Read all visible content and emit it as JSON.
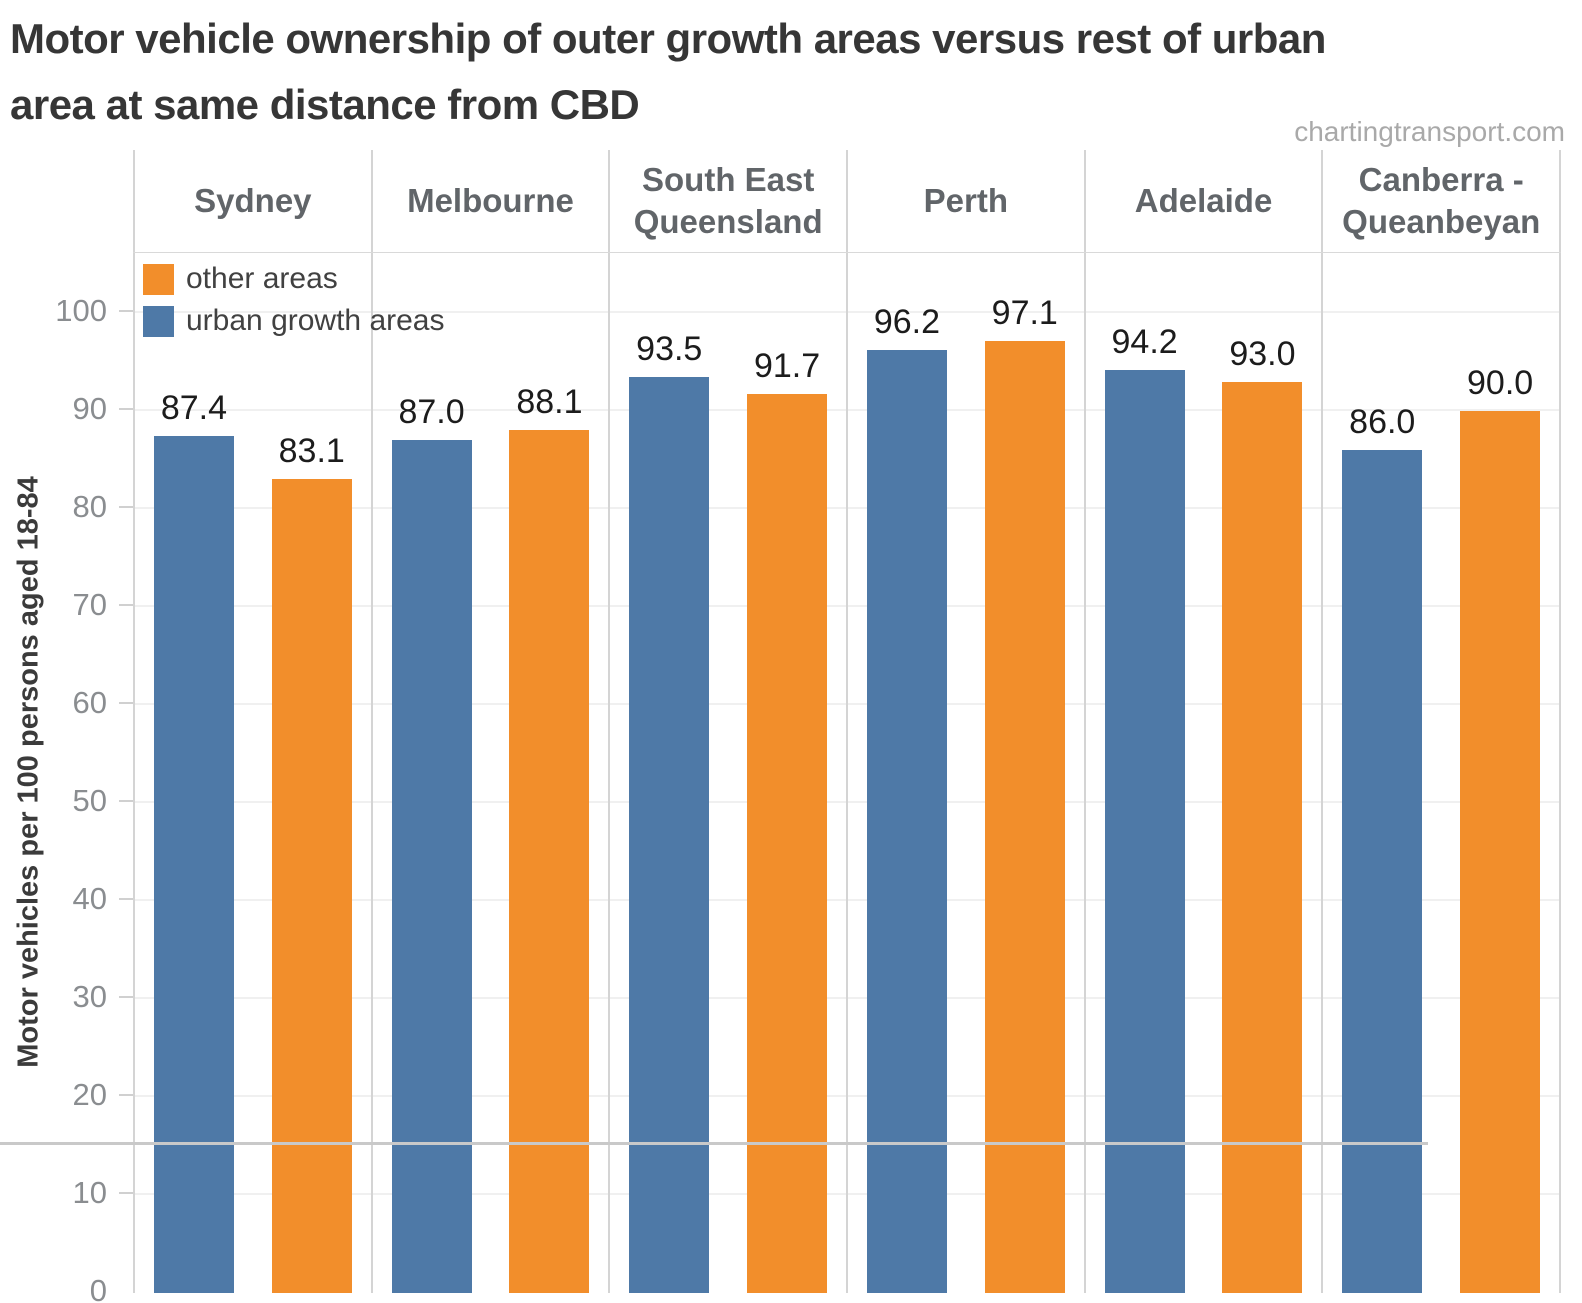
{
  "title_line1": "Motor vehicle ownership of outer growth areas versus rest of urban",
  "title_line2": "area at same distance from CBD",
  "watermark": "chartingtransport.com",
  "colors": {
    "urban_growth_blue": "#4e79a7",
    "other_areas_orange": "#f28e2b",
    "gridline": "#f0f0f0",
    "pane_divider": "#d4d4d4",
    "axis_text": "#8a8d90",
    "header_text": "#616569"
  },
  "legend": [
    {
      "label": "other areas",
      "color": "#f28e2b"
    },
    {
      "label": "urban growth areas",
      "color": "#4e79a7"
    }
  ],
  "chart_data": {
    "type": "bar",
    "title": "Motor vehicle ownership of outer growth areas versus rest of urban area at same distance from CBD",
    "xlabel": "",
    "ylabel": "Motor vehicles per 100 persons aged 18-84",
    "ylim": [
      0,
      106
    ],
    "yticks": [
      0,
      10,
      20,
      30,
      40,
      50,
      60,
      70,
      80,
      90,
      100
    ],
    "grid": true,
    "legend_position": "top-left inside plot",
    "categories": [
      "Sydney",
      "Melbourne",
      "South East Queensland",
      "Perth",
      "Adelaide",
      "Canberra - Queanbeyan"
    ],
    "category_lines": [
      [
        "Sydney"
      ],
      [
        "Melbourne"
      ],
      [
        "South East",
        "Queensland"
      ],
      [
        "Perth"
      ],
      [
        "Adelaide"
      ],
      [
        "Canberra -",
        "Queanbeyan"
      ]
    ],
    "series": [
      {
        "name": "urban growth areas",
        "color": "#4e79a7",
        "values": [
          87.4,
          87.0,
          93.5,
          96.2,
          94.2,
          86.0
        ],
        "labels": [
          "87.4",
          "87.0",
          "93.5",
          "96.2",
          "94.2",
          "86.0"
        ]
      },
      {
        "name": "other areas",
        "color": "#f28e2b",
        "values": [
          83.1,
          88.1,
          91.7,
          97.1,
          93.0,
          90.0
        ],
        "labels": [
          "83.1",
          "88.1",
          "91.7",
          "97.1",
          "93.0",
          "90.0"
        ]
      }
    ]
  }
}
